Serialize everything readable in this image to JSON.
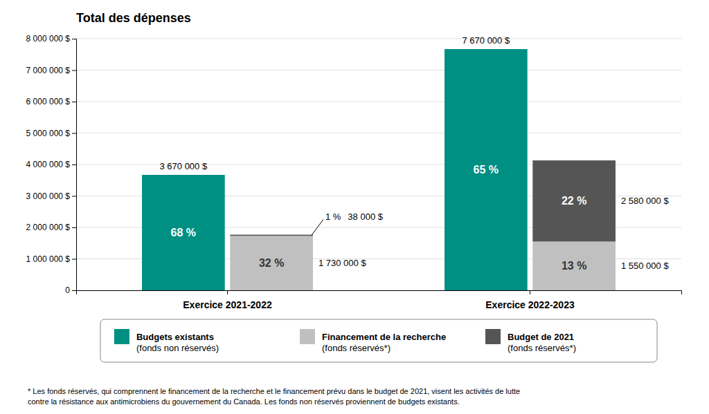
{
  "chart_data": {
    "type": "bar",
    "title": "Total des dépenses",
    "categories": [
      "Exercice 2021-2022",
      "Exercice 2022-2023"
    ],
    "series": [
      {
        "name": "Budgets existants\n(fonds non réservés)",
        "color": "#008F83",
        "values": [
          3670000,
          7670000
        ],
        "value_labels": [
          "3 670 000 $",
          "7 670 000 $"
        ],
        "shares": [
          68,
          65
        ],
        "share_labels": [
          "68 %",
          "65 %"
        ]
      },
      {
        "name": "Financement de la recherche\n(fonds réservés*)",
        "color": "#C0C0C0",
        "stacked": true,
        "values": [
          1730000,
          1550000
        ],
        "value_labels": [
          "1 730 000 $",
          "1 550 000 $"
        ],
        "shares": [
          32,
          13
        ],
        "share_labels": [
          "32 %",
          "13 %"
        ]
      },
      {
        "name": "Budget de 2021\n(fonds réservés*)",
        "color": "#555555",
        "stacked": true,
        "values": [
          38000,
          2580000
        ],
        "value_labels": [
          "38 000 $",
          "2 580 000 $"
        ],
        "shares": [
          1,
          22
        ],
        "share_labels": [
          "1 %",
          "22 %"
        ]
      }
    ],
    "ylim": [
      0,
      8000000
    ],
    "yticks": [
      0,
      {
        "value": 1000000,
        "label": "1 000 000 $"
      },
      {
        "value": 2000000,
        "label": "2 000 000 $"
      },
      {
        "value": 3000000,
        "label": "3 000 000 $"
      },
      {
        "value": 4000000,
        "label": "4 000 000 $"
      },
      {
        "value": 5000000,
        "label": "5 000 000 $"
      },
      {
        "value": 6000000,
        "label": "6 000 000 $"
      },
      {
        "value": 7000000,
        "label": "7 000 000 $"
      },
      {
        "value": 8000000,
        "label": "8 000 000 $"
      }
    ],
    "grid": true,
    "legend": "bottom",
    "data_labels": true,
    "footnote": "* Les fonds réservés, qui comprennent le financement de la recherche et le financement prévu dans le budget de 2021, visent les activités de lutte\ncontre la résistance aux antimicrobiens du gouvernement du Canada. Les fonds non réservés proviennent de budgets existants."
  }
}
